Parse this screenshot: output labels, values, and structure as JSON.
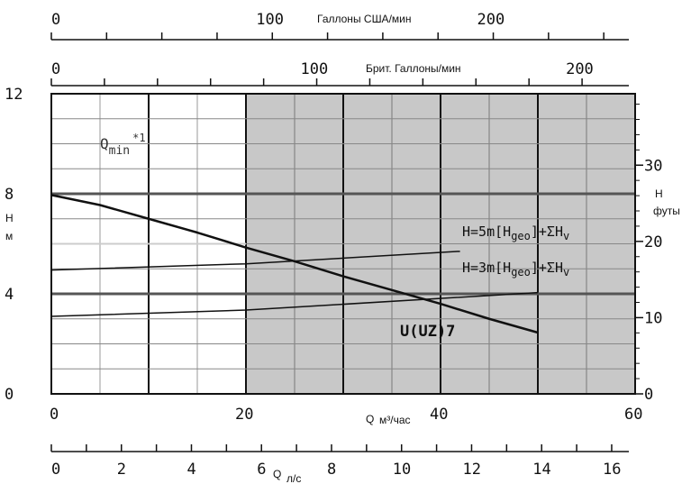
{
  "chart_data": {
    "type": "line",
    "x_axis": {
      "label": "Q м³/час",
      "label_main": "Q",
      "label_unit": "м³/час",
      "range": [
        0,
        60
      ],
      "ticks": [
        "0",
        "20",
        "40",
        "60"
      ]
    },
    "y_axis": {
      "label_main": "H",
      "label_unit": "м",
      "range": [
        0,
        12
      ],
      "ticks": [
        "0",
        "4",
        "8",
        "12"
      ]
    },
    "y_axis_right": {
      "label_main": "H",
      "label_unit": "футы",
      "range": [
        0,
        39.37
      ],
      "ticks": [
        "0",
        "10",
        "20",
        "30"
      ]
    },
    "top_axis_us": {
      "label": "Галлоны США/мин",
      "range": [
        0,
        264.2
      ],
      "ticks": [
        "0",
        "100",
        "200"
      ]
    },
    "top_axis_uk": {
      "label": "Брит. Галлоны/мин",
      "range": [
        0,
        220
      ],
      "ticks": [
        "0",
        "100",
        "200"
      ]
    },
    "bottom_axis_ls": {
      "label_main": "Q",
      "label_unit": "л/с",
      "range": [
        0,
        16.67
      ],
      "ticks": [
        "0",
        "2",
        "4",
        "6",
        "8",
        "10",
        "12",
        "14",
        "16"
      ]
    },
    "shaded_region_x": [
      20,
      60
    ],
    "qmin_label": {
      "main": "Q",
      "sub": "min",
      "sup": "*1"
    },
    "series": [
      {
        "name": "U(UZ)7",
        "x": [
          0,
          5,
          10,
          15,
          20,
          25,
          30,
          35,
          40,
          45,
          50
        ],
        "y": [
          7.95,
          7.55,
          7.0,
          6.45,
          5.85,
          5.3,
          4.7,
          4.15,
          3.6,
          3.0,
          2.45
        ]
      },
      {
        "name": "H=5m[Hgeo]+ΣHv",
        "parts": [
          "H=5m[H",
          "geo",
          "]+ΣH",
          "v"
        ],
        "x": [
          0,
          20,
          42
        ],
        "y": [
          4.95,
          5.2,
          5.7
        ]
      },
      {
        "name": "H=3m[Hgeo]+ΣHv",
        "parts": [
          "H=3m[H",
          "geo",
          "]+ΣH",
          "v"
        ],
        "x": [
          0,
          20,
          50
        ],
        "y": [
          3.1,
          3.35,
          4.05
        ]
      }
    ],
    "grid": true
  }
}
